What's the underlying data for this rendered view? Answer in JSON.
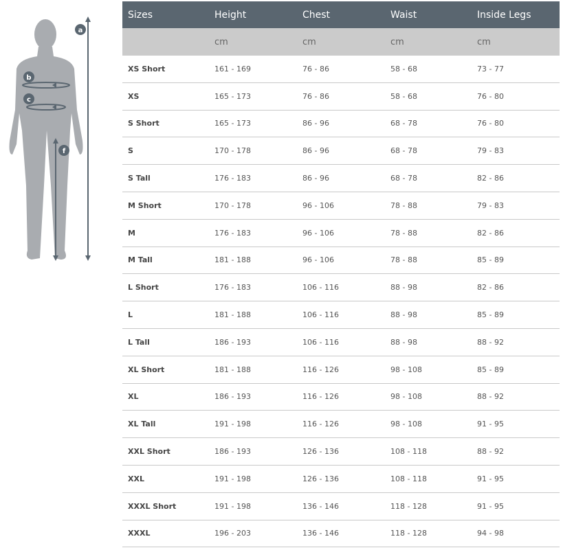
{
  "figure": {
    "labels": [
      "a",
      "b",
      "c",
      "f"
    ]
  },
  "table": {
    "headers": [
      "Sizes",
      "Height",
      "Chest",
      "Waist",
      "Inside Legs"
    ],
    "units": [
      "",
      "cm",
      "cm",
      "cm",
      "cm"
    ],
    "rows": [
      [
        "XS Short",
        "161 - 169",
        "76 - 86",
        "58 - 68",
        "73 - 77"
      ],
      [
        "XS",
        "165 - 173",
        "76 - 86",
        "58 - 68",
        "76 - 80"
      ],
      [
        "S Short",
        "165 - 173",
        "86 - 96",
        "68 - 78",
        "76 - 80"
      ],
      [
        "S",
        "170 - 178",
        "86 - 96",
        "68 - 78",
        "79 - 83"
      ],
      [
        "S Tall",
        "176 - 183",
        "86 - 96",
        "68 - 78",
        "82 - 86"
      ],
      [
        "M Short",
        "170 - 178",
        "96 - 106",
        "78 - 88",
        "79 - 83"
      ],
      [
        "M",
        "176 - 183",
        "96 - 106",
        "78 - 88",
        "82 - 86"
      ],
      [
        "M Tall",
        "181 - 188",
        "96 - 106",
        "78 - 88",
        "85 - 89"
      ],
      [
        "L Short",
        "176 - 183",
        "106 - 116",
        "88 - 98",
        "82 - 86"
      ],
      [
        "L",
        "181 - 188",
        "106 - 116",
        "88 - 98",
        "85 - 89"
      ],
      [
        "L Tall",
        "186 - 193",
        "106 - 116",
        "88 - 98",
        "88 - 92"
      ],
      [
        "XL Short",
        "181 - 188",
        "116 - 126",
        "98 - 108",
        "85 - 89"
      ],
      [
        "XL",
        "186 - 193",
        "116 - 126",
        "98 - 108",
        "88 - 92"
      ],
      [
        "XL Tall",
        "191 - 198",
        "116 - 126",
        "98 - 108",
        "91 - 95"
      ],
      [
        "XXL Short",
        "186 - 193",
        "126 - 136",
        "108 - 118",
        "88 - 92"
      ],
      [
        "XXL",
        "191 - 198",
        "126 - 136",
        "108 - 118",
        "91 - 95"
      ],
      [
        "XXXL Short",
        "191 - 198",
        "136 - 146",
        "118 - 128",
        "91 - 95"
      ],
      [
        "XXXL",
        "196 - 203",
        "136 - 146",
        "118 - 128",
        "94 - 98"
      ]
    ]
  }
}
